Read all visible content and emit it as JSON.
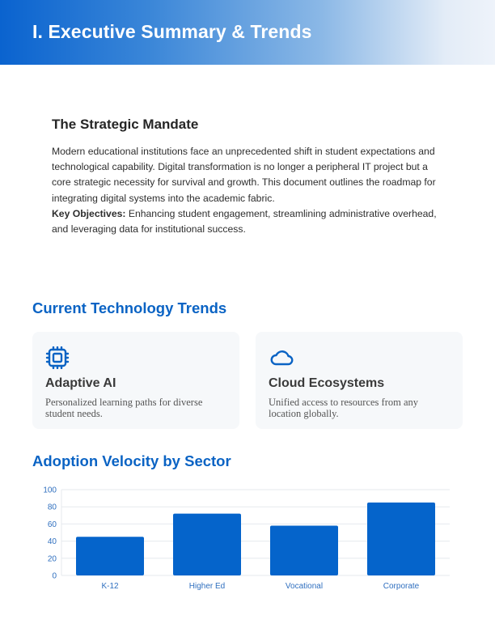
{
  "header": {
    "title": "I. Executive Summary & Trends"
  },
  "mandate": {
    "heading": "The Strategic Mandate",
    "body": "Modern educational institutions face an unprecedented shift in student expectations and technological capability. Digital transformation is no longer a peripheral IT project but a core strategic necessity for survival and growth. This document outlines the roadmap for integrating digital systems into the academic fabric.",
    "key_label": "Key Objectives:",
    "key_text": " Enhancing student engagement, streamlining administrative overhead, and leveraging data for institutional success."
  },
  "trends": {
    "title": "Current Technology Trends",
    "cards": [
      {
        "icon": "cpu-chip-icon",
        "title": "Adaptive AI",
        "description": "Personalized learning paths for diverse student needs."
      },
      {
        "icon": "cloud-icon",
        "title": "Cloud Ecosystems",
        "description": "Unified access to resources from any location globally."
      }
    ]
  },
  "chart_section": {
    "title": "Adoption Velocity by Sector"
  },
  "colors": {
    "accent": "#0a63c4",
    "bar": "#0564cb",
    "grid": "#e6e9ee",
    "tick": "#2f6fbf"
  },
  "chart_data": {
    "type": "bar",
    "title": "Adoption Velocity by Sector",
    "categories": [
      "K-12",
      "Higher Ed",
      "Vocational",
      "Corporate"
    ],
    "values": [
      45,
      72,
      58,
      85
    ],
    "xlabel": "",
    "ylabel": "",
    "ylim": [
      0,
      100
    ],
    "yticks": [
      0,
      20,
      40,
      60,
      80,
      100
    ],
    "grid": true,
    "legend": "none"
  }
}
